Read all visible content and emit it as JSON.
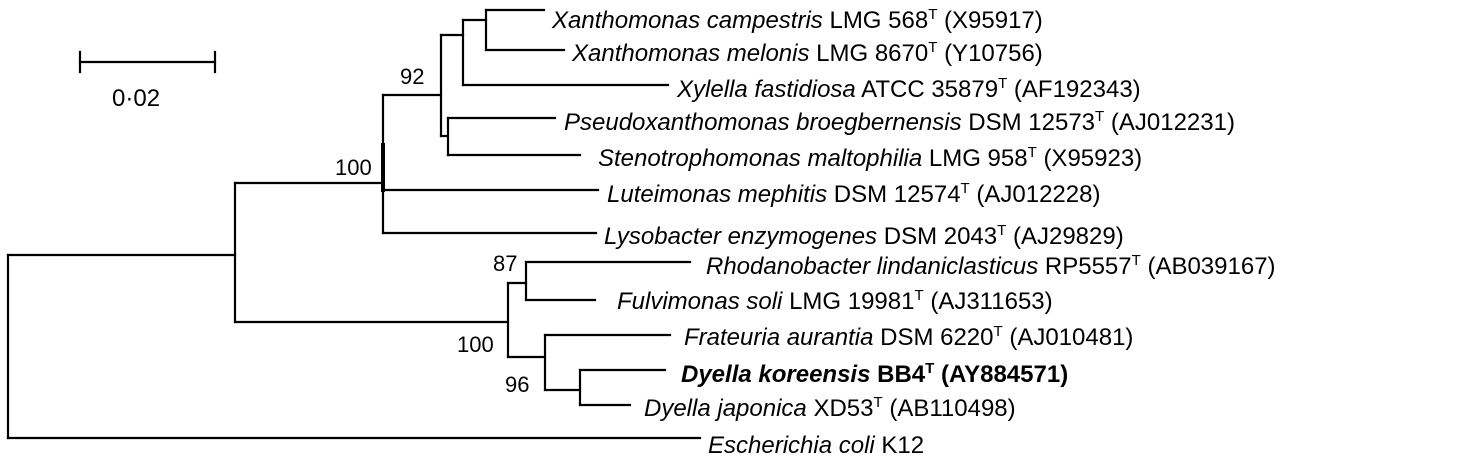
{
  "scale_bar": {
    "label": "0·02"
  },
  "taxa": [
    {
      "id": "xc",
      "genus": "Xanthomonas campestris",
      "strain": "LMG 568",
      "accession": "(X95917)",
      "bold": false
    },
    {
      "id": "xm",
      "genus": "Xanthomonas melonis",
      "strain": "LMG 8670",
      "accession": "(Y10756)",
      "bold": false
    },
    {
      "id": "xf",
      "genus": "Xylella fastidiosa",
      "strain": "ATCC 35879",
      "accession": "(AF192343)",
      "bold": false
    },
    {
      "id": "pb",
      "genus": "Pseudoxanthomonas broegbernensis",
      "strain": "DSM 12573",
      "accession": "(AJ012231)",
      "bold": false
    },
    {
      "id": "sm",
      "genus": "Stenotrophomonas maltophilia",
      "strain": "LMG 958",
      "accession": "(X95923)",
      "bold": false
    },
    {
      "id": "lm",
      "genus": "Luteimonas mephitis",
      "strain": "DSM 12574",
      "accession": "(AJ012228)",
      "bold": false
    },
    {
      "id": "le",
      "genus": "Lysobacter enzymogenes",
      "strain": "DSM 2043",
      "accession": "(AJ29829)",
      "bold": false
    },
    {
      "id": "rl",
      "genus": "Rhodanobacter lindaniclasticus",
      "strain": "RP5557",
      "accession": "(AB039167)",
      "bold": false
    },
    {
      "id": "fs",
      "genus": "Fulvimonas soli",
      "strain": "LMG 19981",
      "accession": "(AJ311653)",
      "bold": false
    },
    {
      "id": "fa",
      "genus": "Frateuria aurantia",
      "strain": "DSM 6220",
      "accession": "(AJ010481)",
      "bold": false
    },
    {
      "id": "dk",
      "genus": "Dyella koreensis",
      "strain": "BB4",
      "accession": "(AY884571)",
      "bold": true
    },
    {
      "id": "dj",
      "genus": "Dyella japonica",
      "strain": "XD53",
      "accession": "(AB110498)",
      "bold": false
    },
    {
      "id": "ec",
      "genus": "Escherichia coli",
      "strain": "K12",
      "accession": "",
      "bold": false,
      "no_type": true
    }
  ],
  "type_strain_mark": "T",
  "bootstrap": {
    "xanthomonas_group": "92",
    "xanthomonadaceae_core": "100",
    "rhodanobacter_group": "87",
    "dyella_frateuria_group": "100",
    "dyella_group": "96"
  }
}
